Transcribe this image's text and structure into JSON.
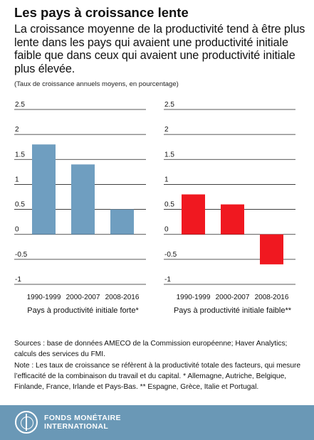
{
  "header": {
    "title": "Les pays à croissance lente",
    "subtitle": "La croissance moyenne de la productivité tend à être plus lente dans les pays qui avaient une productivité initiale faible que dans ceux qui avaient une productivité initiale plus élevée.",
    "units_note": "(Taux de croissance annuels moyens, en pourcentage)"
  },
  "chart_data": [
    {
      "type": "bar",
      "title": "Pays à productivité initiale forte*",
      "categories": [
        "1990-1999",
        "2000-2007",
        "2008-2016"
      ],
      "values": [
        1.8,
        1.4,
        0.5
      ],
      "ylim": [
        -1,
        2.5
      ],
      "yticks": [
        2.5,
        2,
        1.5,
        1,
        0.5,
        0,
        -0.5,
        -1
      ],
      "ytick_labels": [
        "2.5",
        "2",
        "1.5",
        "1",
        "0.5",
        "0",
        "-0.5",
        "-1"
      ],
      "color": "#6f9ec0",
      "grid": false
    },
    {
      "type": "bar",
      "title": "Pays à productivité initiale faible**",
      "categories": [
        "1990-1999",
        "2000-2007",
        "2008-2016"
      ],
      "values": [
        0.8,
        0.6,
        -0.6
      ],
      "ylim": [
        -1,
        2.5
      ],
      "yticks": [
        2.5,
        2,
        1.5,
        1,
        0.5,
        0,
        -0.5,
        -1
      ],
      "ytick_labels": [
        "2.5",
        "2",
        "1.5",
        "1",
        "0.5",
        "0",
        "-0.5",
        "-1"
      ],
      "color": "#f01820",
      "grid": false
    }
  ],
  "sources": {
    "line1": "Sources : base de données AMECO de la Commission européenne; Haver Analytics; calculs des services du FMI.",
    "line2": "Note : Les taux de croissance se réfèrent à la productivité totale des facteurs, qui mesure l’efficacité de la combinaison du travail et du capital. * Allemagne, Autriche, Belgique, Finlande, France, Irlande et Pays-Bas. ** Espagne, Grèce, Italie et Portugal."
  },
  "footer": {
    "logo_line1": "FONDS MONÉTAIRE",
    "logo_line2": "INTERNATIONAL",
    "logo_icon": "imf-seal-icon",
    "background": "#6a98b6"
  }
}
